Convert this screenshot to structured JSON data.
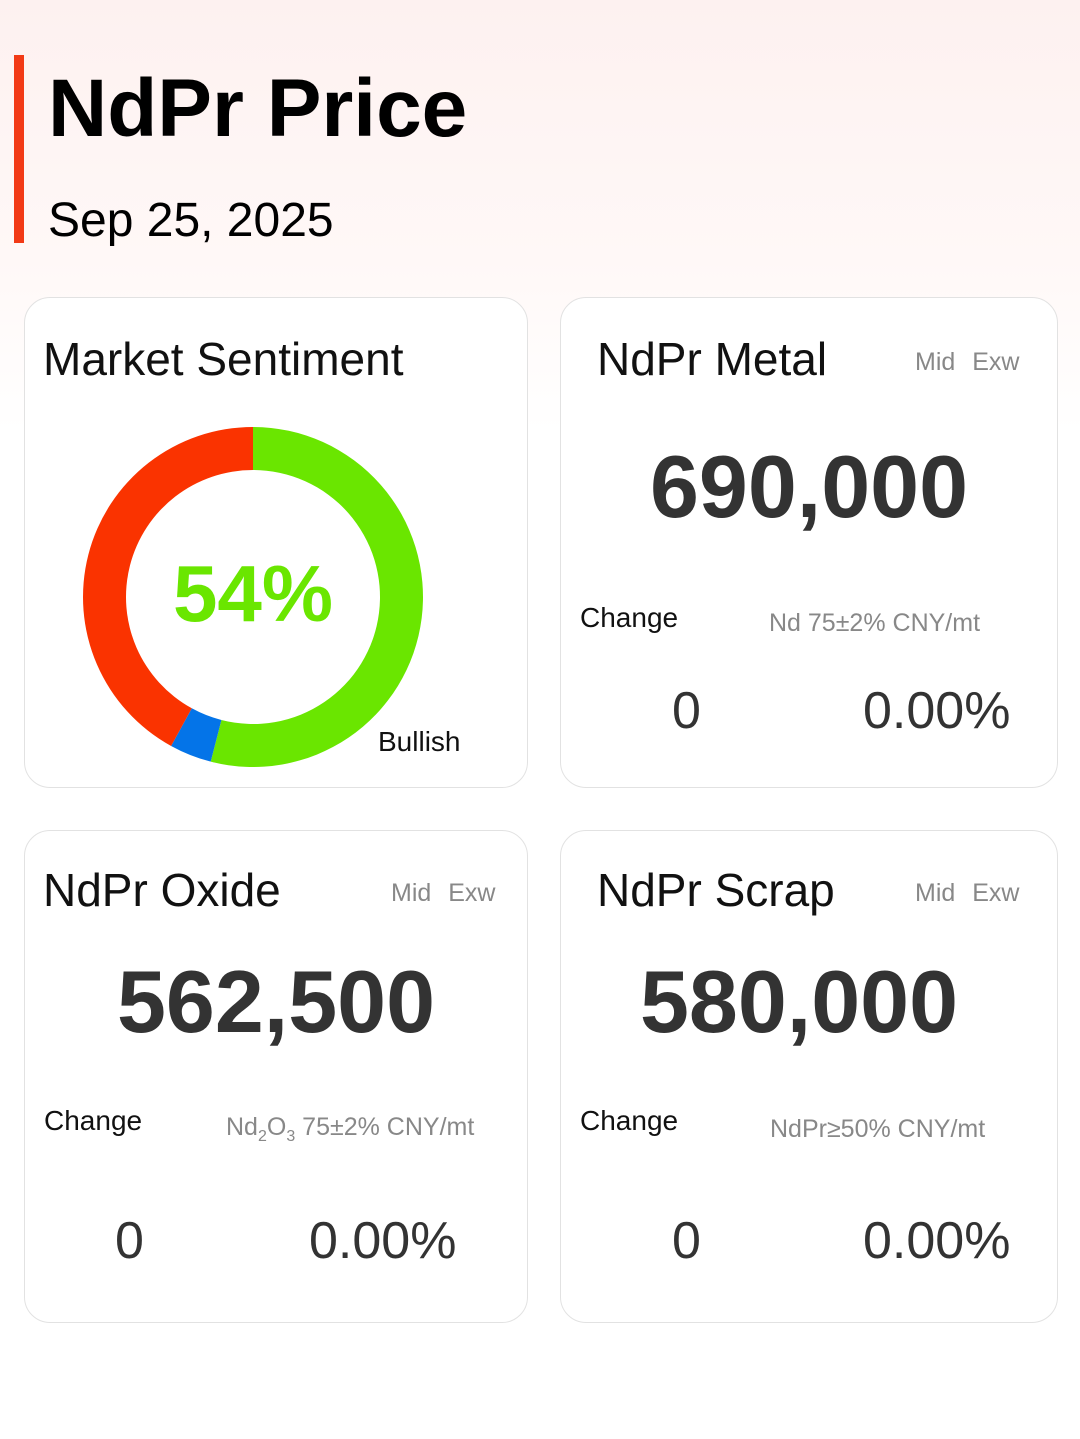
{
  "header": {
    "title": "NdPr Price",
    "date": "Sep 25, 2025"
  },
  "sentiment": {
    "title": "Market Sentiment",
    "percent_label": "54%",
    "label": "Bullish",
    "chart_data": {
      "type": "pie",
      "segments": [
        {
          "name": "Bullish",
          "value": 54,
          "color": "#6ae600"
        },
        {
          "value": 4,
          "color": "#0474e8"
        },
        {
          "value": 42,
          "color": "#fa3300"
        }
      ]
    }
  },
  "cards": [
    {
      "title": "NdPr Metal",
      "tag": "Mid Exw",
      "price": "690,000",
      "change_label": "Change",
      "spec": "Nd 75±2% CNY/mt",
      "change": "0",
      "change_pct": "0.00%"
    },
    {
      "title": "NdPr Oxide",
      "tag": "Mid Exw",
      "price": "562,500",
      "change_label": "Change",
      "spec_parts": [
        "Nd",
        "2",
        "O",
        "3",
        " 75±2% CNY/mt"
      ],
      "change": "0",
      "change_pct": "0.00%"
    },
    {
      "title": "NdPr Scrap",
      "tag": "Mid Exw",
      "price": "580,000",
      "change_label": "Change",
      "spec": "NdPr≥50% CNY/mt",
      "change": "0",
      "change_pct": "0.00%"
    }
  ]
}
